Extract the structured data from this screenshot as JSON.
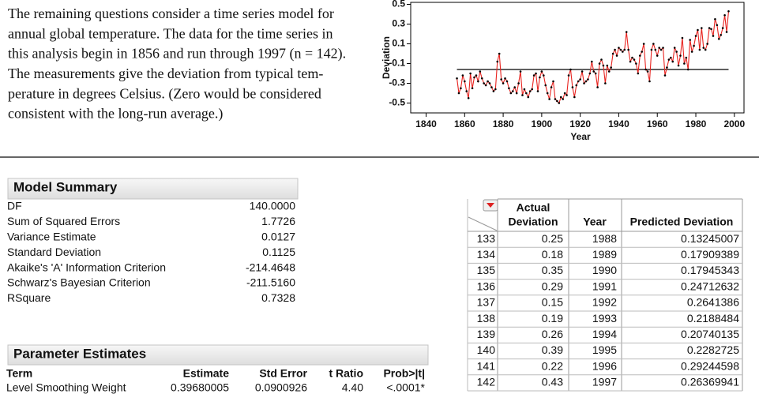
{
  "intro": {
    "lines": [
      "The remaining questions consider a time series model for",
      "annual global temperature.  The data for the time series in",
      "this analysis begin in 1856 and run through 1997 (n = 142).",
      "The measurements give the deviation from typical tem-",
      "perature in degrees Celsius.  (Zero would be considered",
      "consistent with the long-run average.)"
    ]
  },
  "chart_data": {
    "type": "line",
    "y_label": "Deviation",
    "x_label": "Year",
    "x": [
      1856,
      1857,
      1858,
      1859,
      1860,
      1861,
      1862,
      1863,
      1864,
      1865,
      1866,
      1867,
      1868,
      1869,
      1870,
      1871,
      1872,
      1873,
      1874,
      1875,
      1876,
      1877,
      1878,
      1879,
      1880,
      1881,
      1882,
      1883,
      1884,
      1885,
      1886,
      1887,
      1888,
      1889,
      1890,
      1891,
      1892,
      1893,
      1894,
      1895,
      1896,
      1897,
      1898,
      1899,
      1900,
      1901,
      1902,
      1903,
      1904,
      1905,
      1906,
      1907,
      1908,
      1909,
      1910,
      1911,
      1912,
      1913,
      1914,
      1915,
      1916,
      1917,
      1918,
      1919,
      1920,
      1921,
      1922,
      1923,
      1924,
      1925,
      1926,
      1927,
      1928,
      1929,
      1930,
      1931,
      1932,
      1933,
      1934,
      1935,
      1936,
      1937,
      1938,
      1939,
      1940,
      1941,
      1942,
      1943,
      1944,
      1945,
      1946,
      1947,
      1948,
      1949,
      1950,
      1951,
      1952,
      1953,
      1954,
      1955,
      1956,
      1957,
      1958,
      1959,
      1960,
      1961,
      1962,
      1963,
      1964,
      1965,
      1966,
      1967,
      1968,
      1969,
      1970,
      1971,
      1972,
      1973,
      1974,
      1975,
      1976,
      1977,
      1978,
      1979,
      1980,
      1981,
      1982,
      1983,
      1984,
      1985,
      1986,
      1987,
      1988,
      1989,
      1990,
      1991,
      1992,
      1993,
      1994,
      1995,
      1996,
      1997
    ],
    "series": [
      {
        "color": "#e8231f",
        "values": [
          -0.25,
          -0.4,
          -0.35,
          -0.22,
          -0.28,
          -0.38,
          -0.45,
          -0.2,
          -0.35,
          -0.24,
          -0.22,
          -0.28,
          -0.18,
          -0.25,
          -0.3,
          -0.32,
          -0.28,
          -0.3,
          -0.34,
          -0.38,
          -0.36,
          -0.08,
          0.0,
          -0.26,
          -0.3,
          -0.25,
          -0.28,
          -0.35,
          -0.4,
          -0.38,
          -0.34,
          -0.4,
          -0.3,
          -0.18,
          -0.42,
          -0.36,
          -0.4,
          -0.44,
          -0.38,
          -0.36,
          -0.22,
          -0.2,
          -0.38,
          -0.24,
          -0.18,
          -0.22,
          -0.32,
          -0.4,
          -0.46,
          -0.34,
          -0.28,
          -0.46,
          -0.48,
          -0.5,
          -0.44,
          -0.46,
          -0.4,
          -0.42,
          -0.22,
          -0.16,
          -0.34,
          -0.44,
          -0.32,
          -0.28,
          -0.26,
          -0.18,
          -0.3,
          -0.28,
          -0.26,
          -0.2,
          -0.08,
          -0.18,
          -0.2,
          -0.34,
          -0.1,
          -0.06,
          -0.12,
          -0.3,
          -0.12,
          -0.18,
          -0.14,
          0.0,
          0.04,
          -0.02,
          0.06,
          0.04,
          0.02,
          0.04,
          0.22,
          0.04,
          -0.08,
          -0.04,
          -0.06,
          -0.1,
          -0.2,
          -0.02,
          0.02,
          0.1,
          -0.16,
          -0.18,
          -0.28,
          0.04,
          0.1,
          0.04,
          -0.02,
          0.06,
          0.04,
          0.06,
          -0.22,
          -0.14,
          -0.06,
          -0.04,
          -0.08,
          0.06,
          0.02,
          -0.12,
          -0.02,
          0.16,
          -0.1,
          -0.04,
          -0.16,
          0.14,
          0.02,
          0.08,
          0.18,
          0.24,
          0.04,
          0.26,
          0.06,
          0.04,
          0.1,
          0.26,
          0.25,
          0.18,
          0.35,
          0.29,
          0.15,
          0.19,
          0.26,
          0.39,
          0.22,
          0.43
        ]
      }
    ],
    "marker_color": "#000000",
    "reference_line": -0.16,
    "xlim": [
      1832,
      2005
    ],
    "xticks": [
      1840,
      1860,
      1880,
      1900,
      1920,
      1940,
      1960,
      1980,
      2000
    ],
    "ylim": [
      -0.6,
      0.52
    ],
    "yticks": [
      0.5,
      0.3,
      0.1,
      -0.1,
      -0.3,
      -0.5
    ]
  },
  "model_summary": {
    "title": "Model Summary",
    "rows": [
      [
        "DF",
        "140.0000"
      ],
      [
        "Sum of Squared Errors",
        "1.7726"
      ],
      [
        "Variance Estimate",
        "0.0127"
      ],
      [
        "Standard Deviation",
        "0.1125"
      ],
      [
        "Akaike's 'A' Information Criterion",
        "-214.4648"
      ],
      [
        "Schwarz's Bayesian Criterion",
        "-211.5160"
      ],
      [
        "RSquare",
        "0.7328"
      ]
    ]
  },
  "parameter_estimates": {
    "title": "Parameter Estimates",
    "columns": [
      "Term",
      "Estimate",
      "Std Error",
      "t Ratio",
      "Prob>|t|"
    ],
    "rows": [
      [
        "Level Smoothing Weight",
        "0.39680005",
        "0.0900926",
        "4.40",
        "<.0001*"
      ]
    ]
  },
  "data_table": {
    "columns": [
      [
        "Actual",
        "Deviation"
      ],
      [
        "Year"
      ],
      [
        "Predicted Deviation"
      ]
    ],
    "rows": [
      [
        "133",
        "0.25",
        "1988",
        "0.13245007"
      ],
      [
        "134",
        "0.18",
        "1989",
        "0.17909389"
      ],
      [
        "135",
        "0.35",
        "1990",
        "0.17945343"
      ],
      [
        "136",
        "0.29",
        "1991",
        "0.24712632"
      ],
      [
        "137",
        "0.15",
        "1992",
        "0.2641386"
      ],
      [
        "138",
        "0.19",
        "1993",
        "0.2188484"
      ],
      [
        "139",
        "0.26",
        "1994",
        "0.20740135"
      ],
      [
        "140",
        "0.39",
        "1995",
        "0.2282725"
      ],
      [
        "141",
        "0.22",
        "1996",
        "0.29244598"
      ],
      [
        "142",
        "0.43",
        "1997",
        "0.26369941"
      ]
    ]
  }
}
